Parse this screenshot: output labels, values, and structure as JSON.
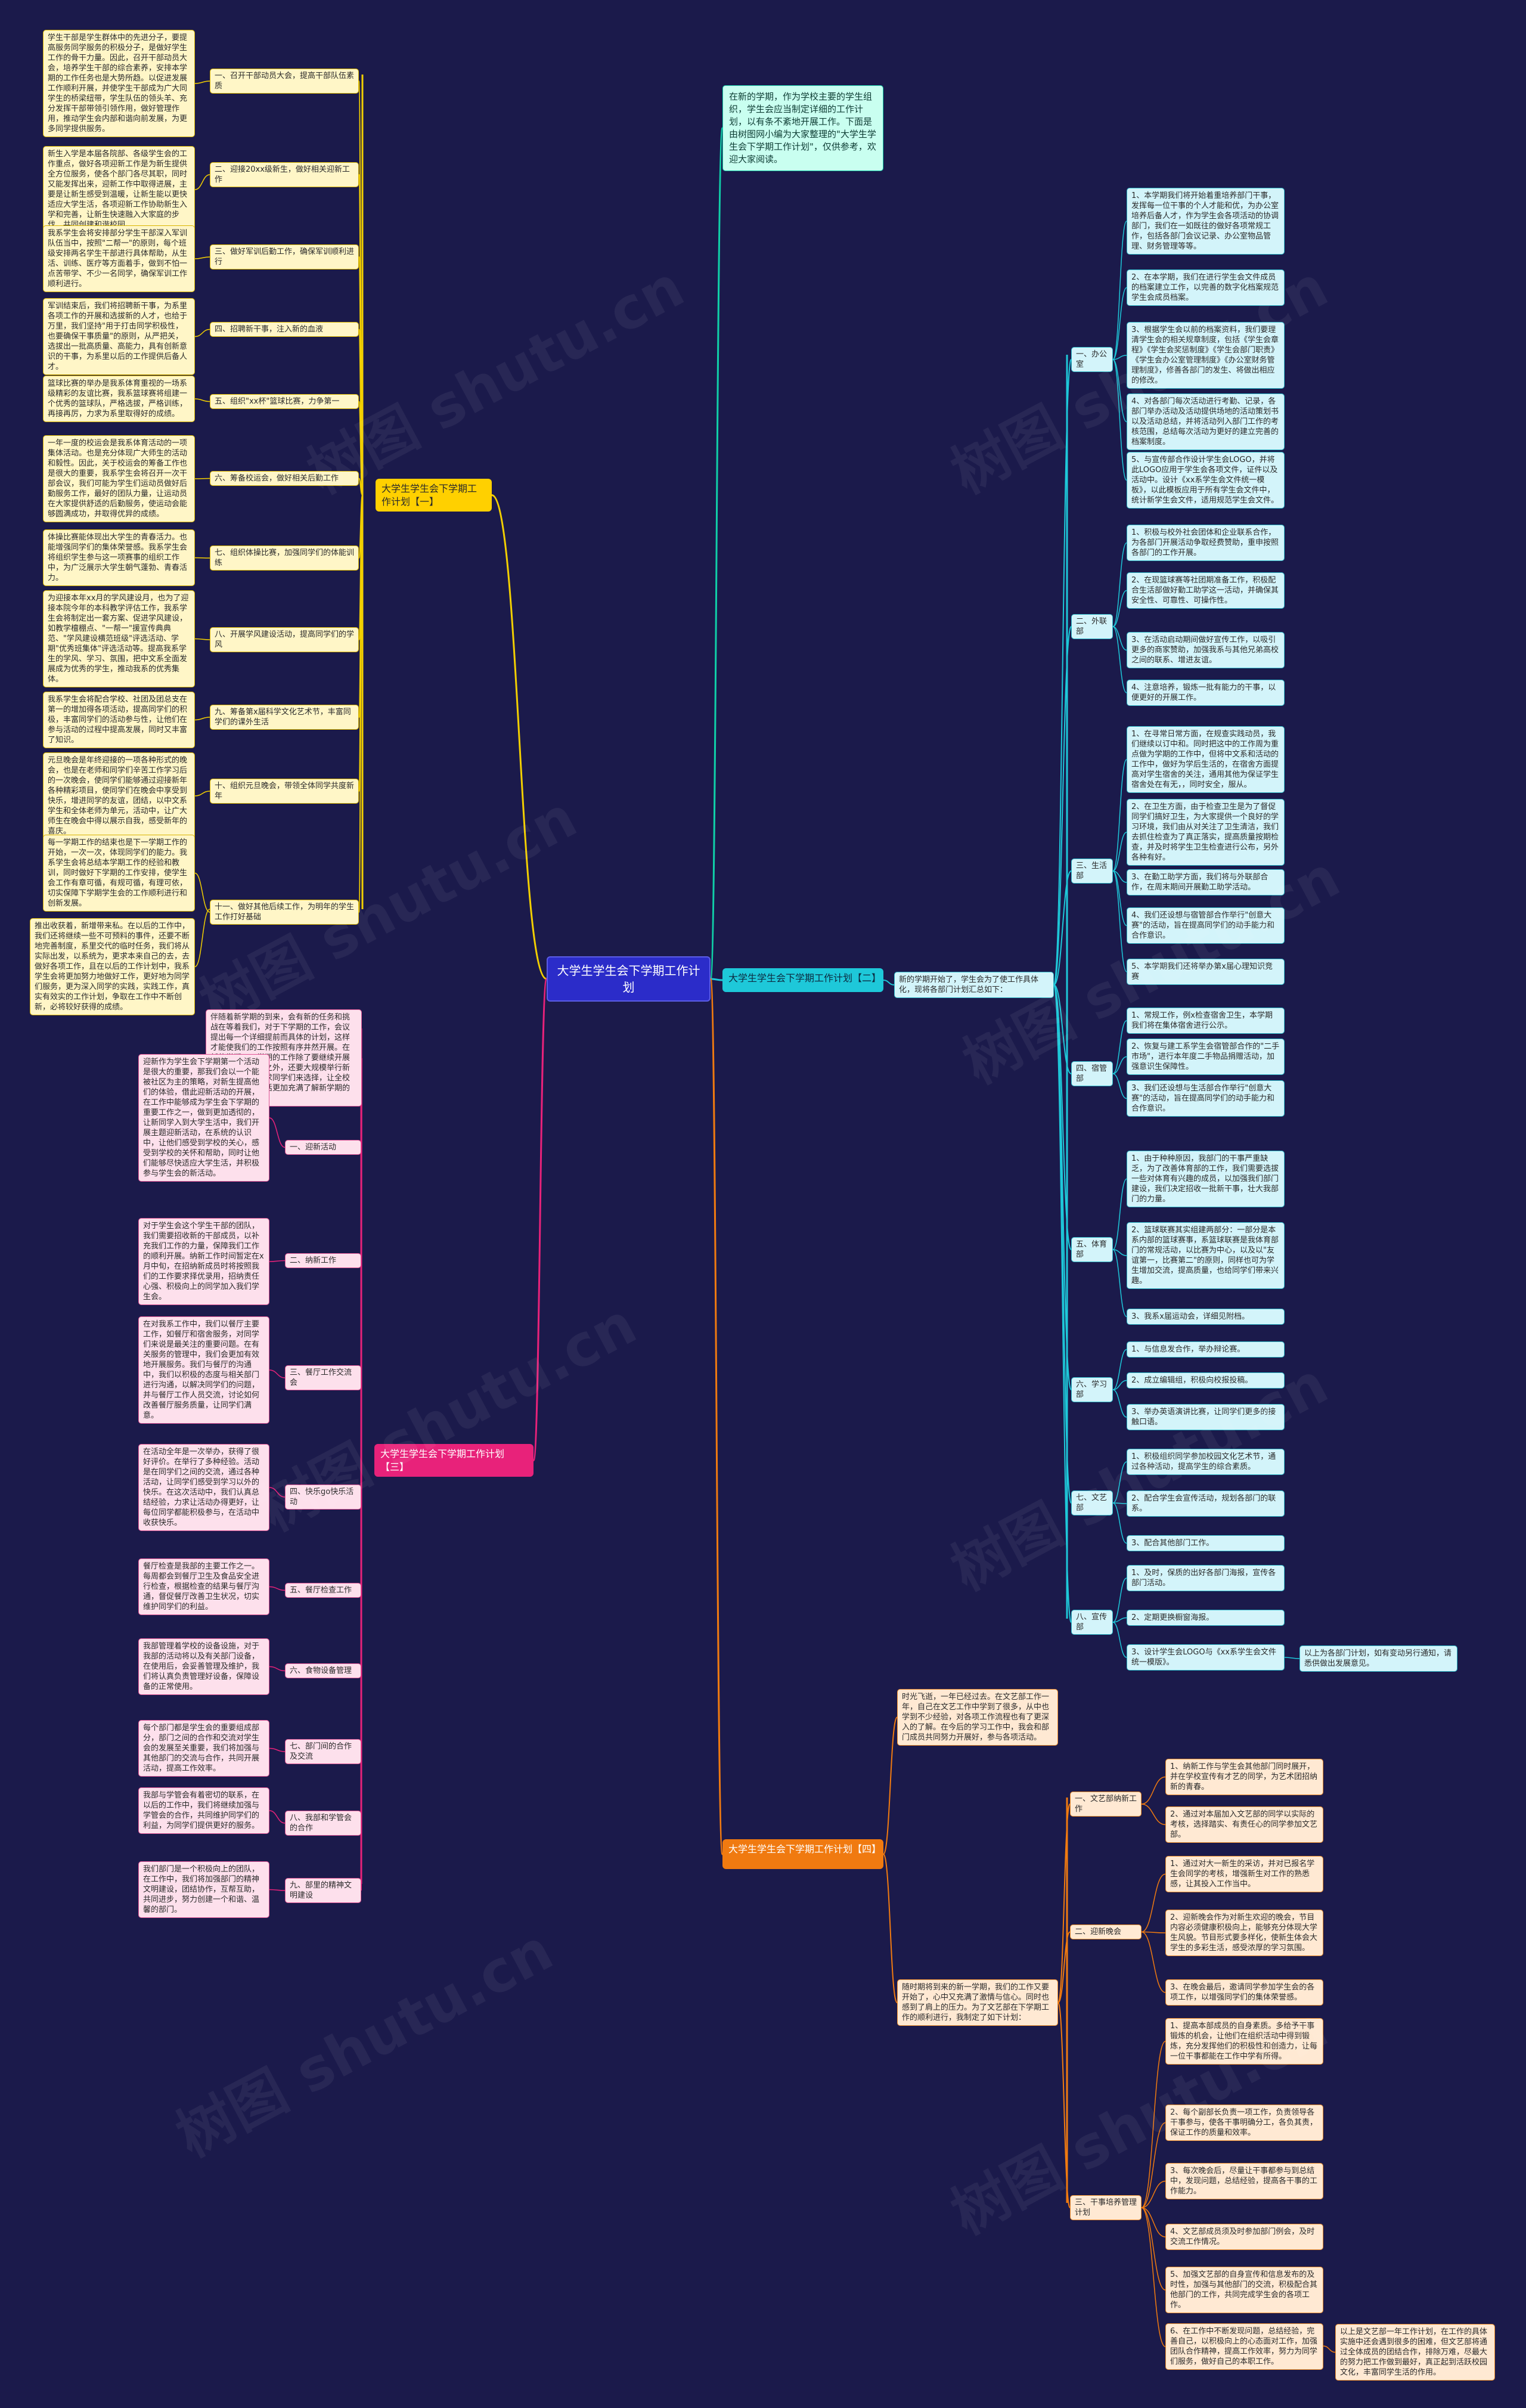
{
  "root": "大学生学生会下学期工作计划",
  "watermark": "树图 shutu.cn",
  "intro": "在新的学期，作为学校主要的学生组织，学生会应当制定详细的工作计划，以有条不紊地开展工作。下面是由树图网小编为大家整理的\"大学生学生会下学期工作计划\"，仅供参考，欢迎大家阅读。",
  "plan1": {
    "title": "大学生学生会下学期工作计划【一】",
    "items": [
      {
        "label": "一、召开干部动员大会，提高干部队伍素质",
        "text": "学生干部是学生群体中的先进分子，要提高服务同学服务的积极分子，是做好学生工作的骨干力量。因此，召开干部动员大会，培养学生干部的综合素养，安排本学期的工作任务也是大势所趋。以促进发展工作顺利开展，并使学生干部成为广大同学生的桥梁纽带，学生队伍的领头羊、充分发挥干部带领引领作用，做好管理作用，推动学生会内部和谐向前发展，为更多同学提供服务。"
      },
      {
        "label": "二、迎接20xx级新生，做好相关迎新工作",
        "text": "新生入学是本届各院部、各级学生会的工作重点，做好各项迎新工作是为新生提供全方位服务，使各个部门各尽其职，同时又能发挥出来，迎新工作中取得进展，主要是让新生感受到温暖，让新生能以更快适应大学生活，各项迎新工作协助新生入学和完善，让新生快速融入大家庭的步伐。共同创建和谐校园。"
      },
      {
        "label": "三、做好军训后勤工作，确保军训顺利进行",
        "text": "我系学生会将安排部分学生干部深入军训队伍当中，按照\"二帮一\"的原则，每个班级安排两名学生干部进行具体帮助，从生活、训练、医疗等方面着手，做到不怕一点苦带学、不少一名同学，确保军训工作顺利进行。"
      },
      {
        "label": "四、招聘新干事，注入新的血液",
        "text": "军训结束后，我们将招聘新干事，为系里各项工作的开展和选拔新的人才，也给于万里，我们坚持\"用于打击同学积极性，也要确保干事质量\"的原则，从严把关，选拔出一批高质量、高能力，具有创新意识的干事，为系里以后的工作提供后备人才。"
      },
      {
        "label": "五、组织\"xx杯\"篮球比赛，力争第一",
        "text": "篮球比赛的举办是我系体育重视的一场系级精彩的友谊比赛，我系篮球赛将组建一个优秀的篮球队，严格选拔，严格训练，再接再厉，力求为系里取得好的成绩。"
      },
      {
        "label": "六、筹备校运会，做好相关后勤工作",
        "text": "一年一度的校运会是我系体育活动的一项集体活动。也是充分体现广大师生的活动和毅性。因此，关于校运会的筹备工作也是很大的重要，我系学生会将召开一次干部会议，我们可能为学生们运动员做好后勤服务工作，最好的团队力量，让运动员在大家提供舒适的后勤服务，使运动会能够圆满成功，并取得优异的成绩。"
      },
      {
        "label": "七、组织体操比赛，加强同学们的体能训练",
        "text": "体操比赛能体现出大学生的青春活力。也能增强同学们的集体荣誉感。我系学生会将组织学生参与这一项赛事的组织工作中，为广泛展示大学生朝气蓬勃、青春活力。"
      },
      {
        "label": "八、开展学风建设活动，提高同学们的学风",
        "text": "为迎接本年xx月的学风建设月，也为了迎接本院今年的本科教学评估工作，我系学生会将制定出一套方案、促进学风建设，如教学檀棚点、\"一帮一\"援宣传典典范、\"学风建设横范班级\"评选活动、学期\"优秀班集体\"评选活动等。提高我系学生的学风、学习、氛围，把中文系全面发展成为优秀的学生，推动我系的优秀集体。"
      },
      {
        "label": "九、筹备第x届科学文化艺术节，丰富同学们的课外生活",
        "text": "我系学生会将配合学校、社团及团总支在第一的增加得各项活动，提高同学们的积极，丰富同学们的活动参与性，让他们在参与活动的过程中提高发展，同时又丰富了知识。"
      },
      {
        "label": "十、组织元旦晚会，带领全体同学共度新年",
        "text": "元旦晚会是年终迎接的一项各种形式的晚会，也是在老师和同学们辛苦工作学习后的一次晚会，使同学们能够通过迎接新年各种精彩项目，使同学们在晚会中享受到快乐，增进同学的友谊，团结，以中文系学生和全体老师为单元，活动中，让广大师生在晚会中得以展示自我，感受新年的喜庆。"
      },
      {
        "label": "十一、做好其他后续工作，为明年的学生工作打好基础",
        "text": "每一学期工作的结束也是下一学期工作的开始，一次一次，体现同学们的能力。我系学生会将总结本学期工作的经验和教训，同时做好下学期的工作安排，使学生会工作有章可循，有规可循，有理可依，切实保障下学期学生会的工作顺利进行和创新发展。"
      }
    ],
    "tail": "推出收获着，新增带来私。在以后的工作中，我们还将继续一些不可预料的事件，还要不断地完善制度，系里交代的临时任务，我们将从实际出发，以系统为，更求本来自己的去，去做好各项工作，且在以后的工作计划中，我系学生会将更加努力地做好工作，更好地为同学们服务，更为深入同学的实践，实践工作，真实有效实的工作计划，争取在工作中不断创新，必将较好获得的成绩。"
  },
  "plan2": {
    "title": "大学生学生会下学期工作计划【二】",
    "lead": "新的学期开始了，学生会为了使工作具体化，现将各部门计划汇总如下：",
    "depts": [
      {
        "label": "一、办公室",
        "items": [
          "1、本学期我们将开始着重培养部门干事，发挥每一位干事的个人才能和优，为办公室培养后备人才，作为学生会各项活动的协调部门，我们在一如既往的做好各项常规工作，包括各部门会议记录、办公室物品管理、财务管理等等。",
          "2、在本学期，我们在进行学生会文件成员的档案建立工作，以完善的数字化档案规范学生会成员档案。",
          "3、根据学生会以前的档案资料，我们要理清学生会的相关规章制度，包括《学生会章程》《学生会奖惩制度》《学生会部门职责》《学生会办公室管理制度》《办公室财务管理制度》，修善各部门的发生、将做出相应的修改。",
          "4、对各部门每次活动进行考勤、记录，各部门举办活动及活动提供场地的活动策划书以及活动总结，并将活动列入部门工作的考核范围，总结每次活动为更好的建立完善的档案制度。",
          "5、与宣传部合作设计学生会LOGO，并将此LOGO应用于学生会各项文件，证件以及活动中。设计《xx系学生会文件统一模板》，以此模板应用于所有学生会文件中，统计新学生会文件，适用规范学生会文件。"
        ]
      },
      {
        "label": "二、外联部",
        "items": [
          "1、积极与校外社会团体和企业联系合作，为各部门开展活动争取经费赞助，重申按照各部门的工作开展。",
          "2、在现篮球赛等社团期准备工作，积极配合生活部做好勤工助学这一活动，并确保其安全性、可靠性、可操作性。",
          "3、在活动启动期间做好宣传工作，以吸引更多的商家赞助，加强我系与其他兄弟高校之间的联系、增进友谊。",
          "4、注意培养，锻炼一批有能力的干事，以便更好的开展工作。"
        ]
      },
      {
        "label": "三、生活部",
        "items": [
          "1、在寻常日常方面，在规查实践动员，我们继续以订中和。同时把这中的工作周为重点做为学期的工作中，但将中文系和活动的工作中，做好为学后生活的，在宿舍方面提高对学生宿舍的关注，通用其他为保证学生宿舍处在有无，，同时安全，服从。",
          "2、在卫生方面，由于检查卫生是为了督促同学们搞好卫生，为大家提供一个良好的学习环境，我们由从对关注了卫生清洁，我们去抓住检查为了真正落实，提高质量按期检查，并及时将学生卫生检查进行公布，另外各种有好。",
          "3、在勤工助学方面，我们将与外联部合作，在周末期间开展勤工助学活动。",
          "4、我们还设想与宿管部合作举行\"创意大赛\"的活动，旨在提高同学们的动手能力和合作意识。",
          "5、本学期我们还将举办第x届心理知识竞赛"
        ]
      },
      {
        "label": "四、宿管部",
        "items": [
          "1、常规工作，例x检查宿舍卫生，本学期我们将在集体宿舍进行公示。",
          "2、恢复与建工系学生会宿管部合作的\"二手市场\"，进行本年度二手物品捐赠活动，加强意识生保障性。",
          "3、我们还设想与生活部合作举行\"创意大赛\"的活动，旨在提高同学们的动手能力和合作意识。"
        ]
      },
      {
        "label": "五、体育部",
        "items": [
          "1、由于种种原因，我部门的干事严重缺乏，为了改善体育部的工作，我们需要选拔一些对体育有兴趣的成员，以加强我们部门建设，我们决定招收一批新干事，壮大我部门的力量。",
          "2、篮球联赛其实组建两部分：一部分是本系内部的篮球赛事，系篮球联赛是我体育部门的常规活动，以比赛为中心，以及以\"友谊第一，比赛第二\"的原则，同样也可为学生增加交流，提高质量，也给同学们带来兴趣。",
          "3、我系x届运动会，详细见附档。"
        ]
      },
      {
        "label": "六、学习部",
        "items": [
          "1、与信息发合作，举办辩论赛。",
          "2、成立编辑组，积极向校报投稿。",
          "3、举办英语演讲比赛，让同学们更多的接触口语。"
        ]
      },
      {
        "label": "七、文艺部",
        "items": [
          "1、积极组织同学参加校园文化艺术节，通过各种活动，提高学生的综合素质。",
          "2、配合学生会宣传活动，规划各部门的联系。",
          "3、配合其他部门工作。"
        ]
      },
      {
        "label": "八、宣传部",
        "items": [
          "1、及时，保质的出好各部门海报，宣传各部门活动。",
          "2、定期更换橱窗海报。",
          "3、设计学生会LOGO与《xx系学生会文件统一模版》。"
        ]
      }
    ],
    "extra": "以上为各部门计划，如有变动另行通知，请悉供做出发展意见。"
  },
  "plan3": {
    "title": "大学生学生会下学期工作计划【三】",
    "lead": "伴随着新学期的到来，会有新的任务和挑战在等着我们，对于下学期的工作，会议提出每一个详细提前而具体的计划，这样才能使我们的工作按照有序井然开展。在新的学期，下学期的工作除了要继续开展新生和大型活动之外，还要大规模举行新的活动计划，力求同学们来选择，让全校师生对我们的生活更加充满了解新学期的工作和安排。",
    "items": [
      {
        "label": "一、迎新活动",
        "text": "迎新作为学生会下学期第一个活动是很大的重要，那我们会以一个能被社区为主的策略，对新生提高他们的体验，借此迎新活动的开展，在工作中能够成为学生会下学期的重要工作之一，做到更加透彻的，让新同学入到大学生活中，我们开展主题迎新活动，在系统的认识中，让他们感受到学校的关心，感受到学校的关怀和帮助，同时让他们能够尽快适应大学生活，并积极参与学生会的新活动。"
      },
      {
        "label": "二、纳新工作",
        "text": "对于学生会这个学生干部的团队，我们需要招收新的干部成员，以补充我们工作的力量，保障我们工作的顺利开展。纳新工作时间暂定在x月中旬，在招纳新成员时将按照我们的工作要求择优录用，招纳责任心强、积极向上的同学加入我们学生会。"
      },
      {
        "label": "三、餐厅工作交流会",
        "text": "在对我系工作中，我们以餐厅主要工作，如餐厅和宿舍服务，对同学们来说是最关注的重要问题。在有关服务的管理中，我们会更加有效地开展服务。我们与餐厅的沟通中，我们以积极的态度与相关部门进行沟通，以解决同学们的问题，并与餐厅工作人员交流，讨论如何改善餐厅服务质量，让同学们满意。"
      },
      {
        "label": "四、快乐go快乐活动",
        "text": "在活动全年是一次举办，获得了很好评价。在举行了多种经验。活动是在同学们之间的交流，通过各种活动，让同学们感受到学习以外的快乐。在这次活动中，我们认真总结经验，力求让活动办得更好，让每位同学都能积极参与，在活动中收获快乐。"
      },
      {
        "label": "五、餐厅检查工作",
        "text": "餐厅检查是我部的主要工作之一。每周都会到餐厅卫生及食品安全进行检查，根据检查的结果与餐厅沟通，督促餐厅改善卫生状况，切实维护同学们的利益。"
      },
      {
        "label": "六、食物设备管理",
        "text": "我部管理着学校的设备设施，对于我部的活动将以及有关部门设备，在使用后，会妥善管理及维护，我们将认真负责管理好设备，保障设备的正常使用。"
      },
      {
        "label": "七、部门间的合作及交流",
        "text": "每个部门都是学生会的重要组成部分，部门之间的合作和交流对学生会的发展至关重要，我们将加强与其他部门的交流与合作，共同开展活动，提高工作效率。"
      },
      {
        "label": "八、我部和学管会的合作",
        "text": "我部与学管会有着密切的联系，在以后的工作中，我们将继续加强与学管会的合作，共同维护同学们的利益，为同学们提供更好的服务。"
      },
      {
        "label": "九、部里的精神文明建设",
        "text": "我们部门是一个积极向上的团队，在工作中，我们将加强部门的精神文明建设，团结协作，互帮互助，共同进步，努力创建一个和谐、温馨的部门。"
      }
    ]
  },
  "plan4": {
    "title": "大学生学生会下学期工作计划【四】",
    "intro1": "时光飞逝，一年已经过去。在文艺部工作一年，自己在文艺工作中学到了很多，从中也学到不少经验，对各项工作流程也有了更深入的了解。在今后的学习工作中，我会和部门成员共同努力开展好，参与各项活动。",
    "intro2": "随时期将到来的新一学期，我们的工作又要开始了，心中又充满了激情与信心。同时也感到了肩上的压力。为了文艺部在下学期工作的顺利进行，我制定了如下计划：",
    "groups": [
      {
        "label": "一、文艺部纳新工作",
        "items": [
          "1、纳新工作与学生会其他部门同时展开，并在学校宣传有才艺的同学，为艺术团招纳新的青春。",
          "2、通过对本届加入文艺部的同学以实际的考核，选择踏实、有责任心的同学参加文艺部。"
        ]
      },
      {
        "label": "二、迎新晚会",
        "items": [
          "1、通过对大一新生的采访，并对已报名学生会同学的考核，增强新生对工作的熟悉感，让其投入工作当中。",
          "2、迎新晚会作为对新生欢迎的晚会，节目内容必须健康积极向上，能够充分体现大学生风貌。节目形式要多样化，使新生体会大学生的多彩生活，感受浓厚的学习氛围。",
          "3、在晚会最后，邀请同学参加学生会的各项工作，以增强同学们的集体荣誉感。"
        ]
      },
      {
        "label": "三、干事培养管理计划",
        "items": [
          "1、提高本部成员的自身素质。多给予干事锻炼的机会，让他们在组织活动中得到锻炼，充分发挥他们的积极性和创造力，让每一位干事都能在工作中学有所得。",
          "2、每个副部长负责一项工作，负责领导各干事参与，使各干事明确分工，各负其责，保证工作的质量和效率。",
          "3、每次晚会后，尽量让干事都参与到总结中，发现问题，总结经验，提高各干事的工作能力。",
          "4、文艺部成员须及时参加部门例会，及时交流工作情况。",
          "5、加强文艺部的自身宣传和信息发布的及时性，加强与其他部门的交流，积极配合其他部门的工作，共同完成学生会的各项工作。",
          "6、在工作中不断发现问题，总结经验，完善自己，以积极向上的心态面对工作，加强团队合作精神，提高工作效率，努力为同学们服务，做好自己的本职工作。"
        ]
      }
    ],
    "extra": "以上是文艺部一年工作计划，在工作的具体实施中还会遇到很多的困难，但文艺部将通过全体成员的团结合作，排除万难，尽最大的努力把工作做到最好，真正起到活跃校园文化，丰富同学生活的作用。"
  }
}
